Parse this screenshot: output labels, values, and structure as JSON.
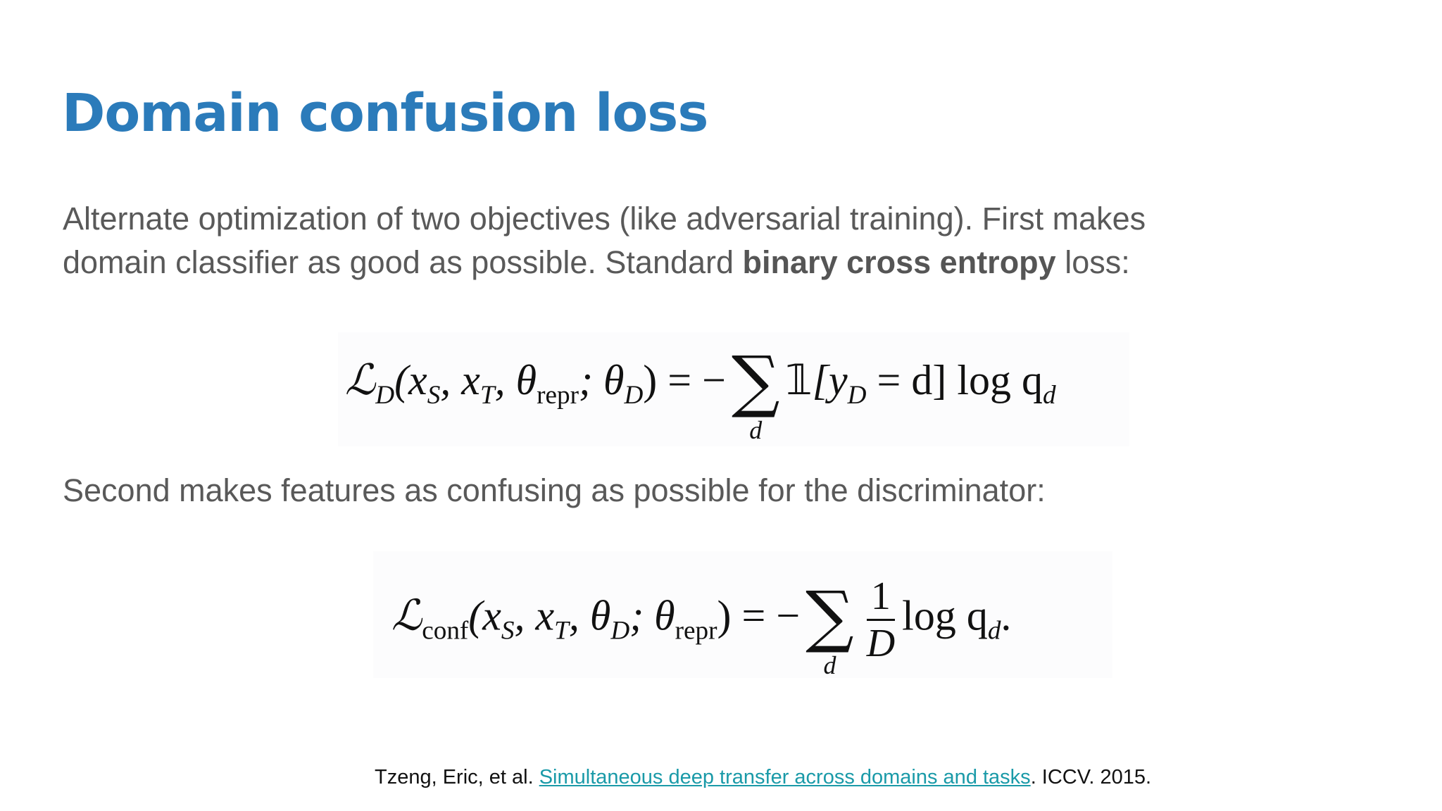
{
  "slide": {
    "title": "Domain confusion loss",
    "paragraph1": {
      "line1": "Alternate optimization of two objectives (like adversarial training). First makes",
      "line2_before": "domain classifier as good as possible. Standard ",
      "line2_bold": "binary cross entropy",
      "line2_after": " loss:"
    },
    "equation1": {
      "lhs_L": "ℒ",
      "lhs_sub": "D",
      "args": "(x",
      "args_sub1": "S",
      "args_mid1": ", x",
      "args_sub2": "T",
      "args_mid2": ", θ",
      "args_sub3": "repr",
      "args_mid3": "; θ",
      "args_sub4": "D",
      "args_end": ") = −",
      "sum_symbol": "∑",
      "sum_index": "d",
      "indicator": "𝟙",
      "body_start": "[y",
      "body_sub": "D",
      "body_end": " = d] log q",
      "body_sub2": "d"
    },
    "paragraph2": "Second makes features as confusing as possible for the discriminator:",
    "equation2": {
      "lhs_L": "ℒ",
      "lhs_sub": "conf",
      "args": "(x",
      "args_sub1": "S",
      "args_mid1": ", x",
      "args_sub2": "T",
      "args_mid2": ", θ",
      "args_sub3": "D",
      "args_mid3": "; θ",
      "args_sub4": "repr",
      "args_end": ") = −",
      "sum_symbol": "∑",
      "sum_index": "d",
      "frac_num": "1",
      "frac_den": "D",
      "tail": "log q",
      "tail_sub": "d",
      "tail_end": "."
    },
    "citation": {
      "prefix": "Tzeng, Eric, et al. ",
      "link_text": "Simultaneous deep transfer across domains and tasks",
      "suffix": ". ICCV. 2015."
    }
  },
  "colors": {
    "title": "#2b7bba",
    "body_text": "#595959",
    "link": "#1a9aa8"
  }
}
